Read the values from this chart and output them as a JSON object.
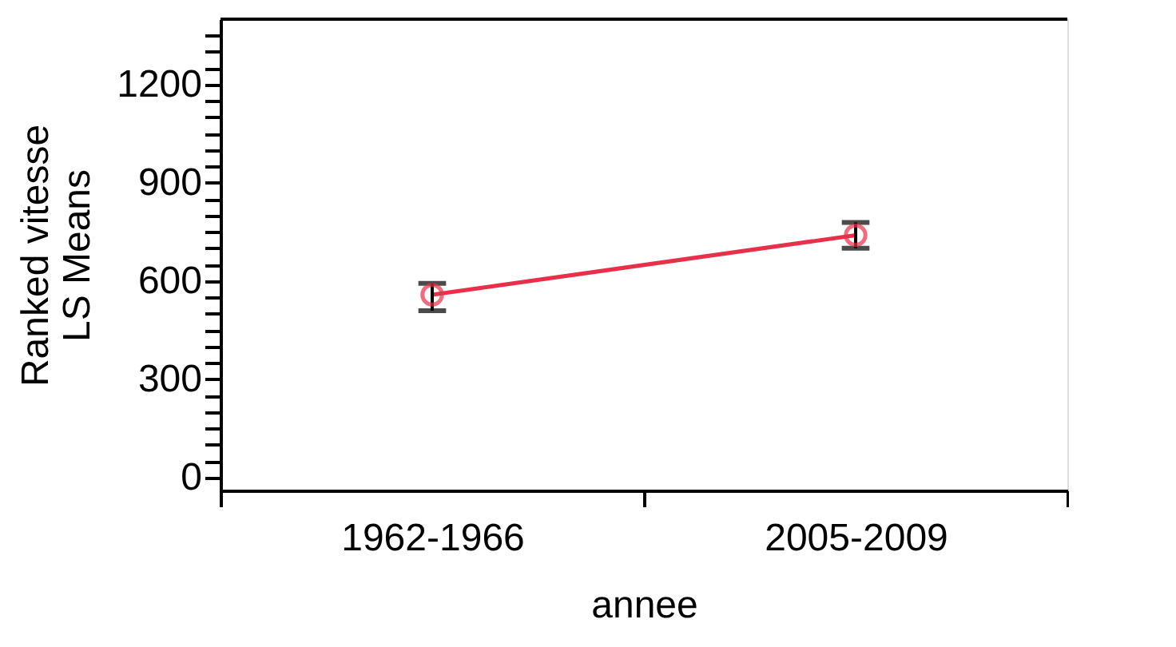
{
  "chart_data": {
    "type": "line",
    "xlabel": "annee",
    "ylabel": "Ranked vitesse\nLS Means",
    "categories": [
      "1962-1966",
      "2005-2009"
    ],
    "series": [
      {
        "color": "#e8304a",
        "values": [
          558,
          740
        ],
        "errors": [
          [
            509,
            593
          ],
          [
            700,
            779
          ]
        ]
      }
    ],
    "marker": "circle",
    "line_style": "solid",
    "grid": false,
    "ylim": [
      -40,
      1400
    ],
    "yticks": [
      0,
      {
        "value": 50,
        "label": null
      },
      {
        "value": 100,
        "label": null
      },
      {
        "value": 150,
        "label": null
      },
      {
        "value": 200,
        "label": null
      },
      {
        "value": 250,
        "label": null
      },
      300,
      {
        "value": 350,
        "label": null
      },
      {
        "value": 400,
        "label": null
      },
      {
        "value": 450,
        "label": null
      },
      {
        "value": 500,
        "label": null
      },
      {
        "value": 550,
        "label": null
      },
      600,
      {
        "value": 650,
        "label": null
      },
      {
        "value": 700,
        "label": null
      },
      {
        "value": 750,
        "label": null
      },
      {
        "value": 800,
        "label": null
      },
      {
        "value": 850,
        "label": null
      },
      900,
      {
        "value": 950,
        "label": null
      },
      {
        "value": 1000,
        "label": null
      },
      {
        "value": 1050,
        "label": null
      },
      {
        "value": 1100,
        "label": null
      },
      {
        "value": 1150,
        "label": null
      },
      1200,
      {
        "value": 1250,
        "label": null
      },
      {
        "value": 1300,
        "label": null
      },
      {
        "value": 1350,
        "label": null
      }
    ]
  }
}
